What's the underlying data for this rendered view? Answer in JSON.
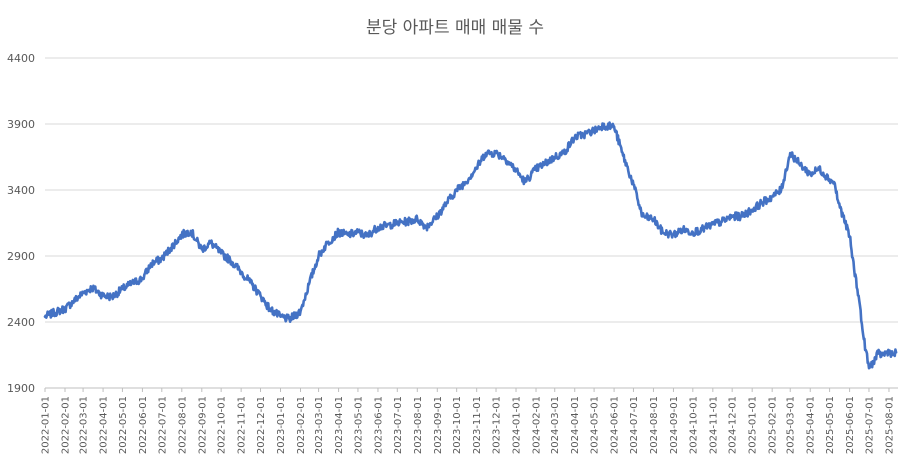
{
  "chart_data": {
    "type": "line",
    "title": "분당 아파트 매매 매물 수",
    "xlabel": "",
    "ylabel": "",
    "ylim": [
      1900,
      4400
    ],
    "yticks": [
      1900,
      2400,
      2900,
      3400,
      3900,
      4400
    ],
    "xlim": [
      "2022-01-01",
      "2025-08-15"
    ],
    "grid": true,
    "legend": "none",
    "x_tick_labels": [
      "2022-01-01",
      "2022-02-01",
      "2022-03-01",
      "2022-04-01",
      "2022-05-01",
      "2022-06-01",
      "2022-07-01",
      "2022-08-01",
      "2022-09-01",
      "2022-10-01",
      "2022-11-01",
      "2022-12-01",
      "2023-01-01",
      "2023-02-01",
      "2023-03-01",
      "2023-04-01",
      "2023-05-01",
      "2023-06-01",
      "2023-07-01",
      "2023-08-01",
      "2023-09-01",
      "2023-10-01",
      "2023-11-01",
      "2023-12-01",
      "2024-01-01",
      "2024-02-01",
      "2024-03-01",
      "2024-04-01",
      "2024-05-01",
      "2024-06-01",
      "2024-07-01",
      "2024-08-01",
      "2024-09-01",
      "2024-10-01",
      "2024-11-01",
      "2024-12-01",
      "2025-01-01",
      "2025-02-01",
      "2025-03-01",
      "2025-04-01",
      "2025-05-01",
      "2025-06-01",
      "2025-07-01",
      "2025-08-01"
    ],
    "series": [
      {
        "color": "#4472c4",
        "x": [
          "2022-01-01",
          "2022-01-15",
          "2022-02-01",
          "2022-02-15",
          "2022-03-01",
          "2022-03-15",
          "2022-04-01",
          "2022-04-15",
          "2022-05-01",
          "2022-05-15",
          "2022-06-01",
          "2022-06-15",
          "2022-07-01",
          "2022-07-15",
          "2022-08-01",
          "2022-08-15",
          "2022-09-01",
          "2022-09-15",
          "2022-10-01",
          "2022-10-15",
          "2022-11-01",
          "2022-11-15",
          "2022-12-01",
          "2022-12-15",
          "2023-01-01",
          "2023-01-15",
          "2023-02-01",
          "2023-02-15",
          "2023-03-01",
          "2023-03-15",
          "2023-04-01",
          "2023-04-15",
          "2023-05-01",
          "2023-05-15",
          "2023-06-01",
          "2023-06-15",
          "2023-07-01",
          "2023-07-15",
          "2023-08-01",
          "2023-08-15",
          "2023-09-01",
          "2023-09-15",
          "2023-10-01",
          "2023-10-15",
          "2023-11-01",
          "2023-11-15",
          "2023-12-01",
          "2023-12-15",
          "2024-01-01",
          "2024-01-15",
          "2024-02-01",
          "2024-02-15",
          "2024-03-01",
          "2024-03-15",
          "2024-04-01",
          "2024-04-15",
          "2024-05-01",
          "2024-05-15",
          "2024-06-01",
          "2024-06-15",
          "2024-07-01",
          "2024-07-15",
          "2024-08-01",
          "2024-08-15",
          "2024-09-01",
          "2024-09-15",
          "2024-10-01",
          "2024-10-15",
          "2024-11-01",
          "2024-11-15",
          "2024-12-01",
          "2024-12-15",
          "2025-01-01",
          "2025-01-15",
          "2025-02-01",
          "2025-02-15",
          "2025-03-01",
          "2025-03-15",
          "2025-04-01",
          "2025-04-15",
          "2025-05-01",
          "2025-05-08",
          "2025-05-15",
          "2025-05-22",
          "2025-06-01",
          "2025-06-08",
          "2025-06-15",
          "2025-06-22",
          "2025-07-01",
          "2025-07-08",
          "2025-07-15",
          "2025-07-22",
          "2025-08-01",
          "2025-08-08",
          "2025-08-12"
        ],
        "values": [
          2440,
          2470,
          2500,
          2560,
          2620,
          2660,
          2600,
          2590,
          2650,
          2690,
          2730,
          2840,
          2880,
          2960,
          3060,
          3090,
          2950,
          3000,
          2920,
          2870,
          2780,
          2700,
          2600,
          2500,
          2440,
          2420,
          2480,
          2700,
          2900,
          3000,
          3080,
          3060,
          3080,
          3050,
          3120,
          3130,
          3150,
          3160,
          3180,
          3120,
          3200,
          3300,
          3400,
          3460,
          3570,
          3680,
          3680,
          3640,
          3550,
          3460,
          3560,
          3600,
          3650,
          3680,
          3800,
          3820,
          3850,
          3890,
          3880,
          3660,
          3440,
          3200,
          3180,
          3080,
          3060,
          3100,
          3080,
          3100,
          3140,
          3160,
          3200,
          3200,
          3250,
          3300,
          3350,
          3400,
          3680,
          3600,
          3520,
          3560,
          3480,
          3460,
          3300,
          3200,
          3050,
          2800,
          2600,
          2300,
          2050,
          2100,
          2160,
          2150,
          2180,
          2150,
          2170
        ]
      }
    ]
  }
}
